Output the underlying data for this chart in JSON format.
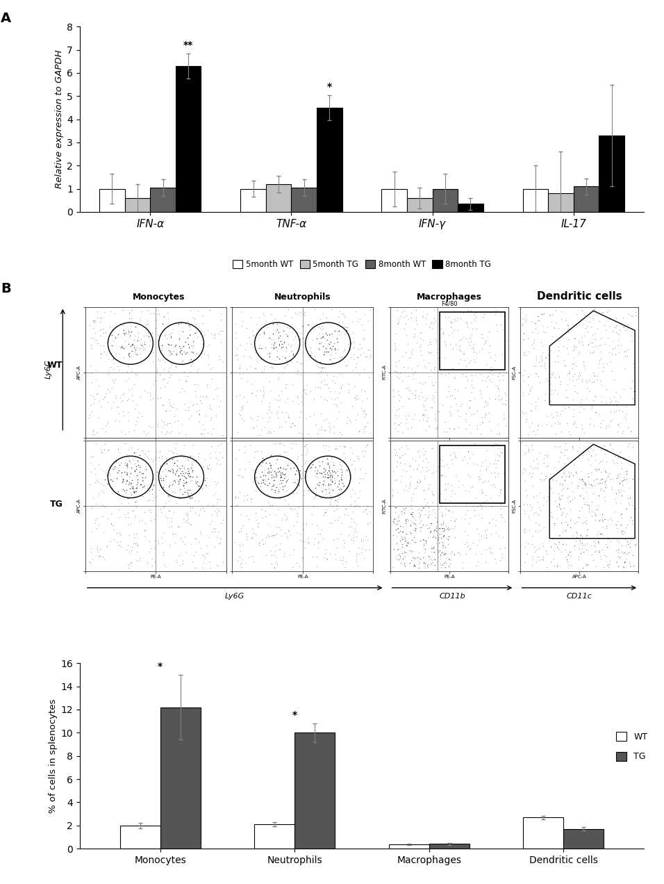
{
  "panel_A": {
    "groups": [
      "IFN-α",
      "TNF-α",
      "IFN-γ",
      "IL-17"
    ],
    "series_labels": [
      "5month WT",
      "5month TG",
      "8month WT",
      "8month TG"
    ],
    "colors": [
      "white",
      "#c0c0c0",
      "#606060",
      "black"
    ],
    "edge_colors": [
      "black",
      "black",
      "black",
      "black"
    ],
    "values": [
      [
        1.0,
        0.6,
        1.05,
        6.3
      ],
      [
        1.0,
        1.2,
        1.05,
        4.5
      ],
      [
        1.0,
        0.6,
        1.0,
        0.35
      ],
      [
        1.0,
        0.8,
        1.1,
        3.3
      ]
    ],
    "errors": [
      [
        0.65,
        0.6,
        0.35,
        0.55
      ],
      [
        0.35,
        0.35,
        0.35,
        0.55
      ],
      [
        0.75,
        0.45,
        0.65,
        0.25
      ],
      [
        1.0,
        1.8,
        0.35,
        2.2
      ]
    ],
    "significance": [
      {
        "group": 0,
        "bar": 3,
        "text": "**"
      },
      {
        "group": 1,
        "bar": 3,
        "text": "*"
      }
    ],
    "ylabel": "Relative expression to GAPDH",
    "ylim": [
      0,
      8
    ],
    "yticks": [
      0,
      1,
      2,
      3,
      4,
      5,
      6,
      7,
      8
    ]
  },
  "panel_B_bar": {
    "categories": [
      "Monocytes",
      "Neutrophils",
      "Macrophages",
      "Dendritic cells"
    ],
    "wt_values": [
      2.0,
      2.1,
      0.35,
      2.7
    ],
    "tg_values": [
      12.2,
      10.0,
      0.4,
      1.7
    ],
    "wt_errors": [
      0.25,
      0.2,
      0.05,
      0.15
    ],
    "tg_errors": [
      2.8,
      0.8,
      0.1,
      0.15
    ],
    "wt_color": "white",
    "tg_color": "#555555",
    "ylabel": "% of cells in splenocytes",
    "ylim": [
      0,
      16
    ],
    "yticks": [
      0,
      2,
      4,
      6,
      8,
      10,
      12,
      14,
      16
    ],
    "significance": [
      {
        "group": 0,
        "text": "*"
      },
      {
        "group": 1,
        "text": "*"
      }
    ]
  }
}
